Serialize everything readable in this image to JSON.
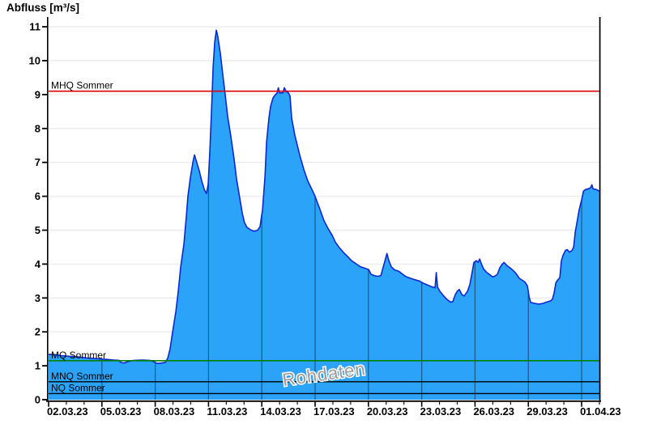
{
  "title": "Abfluss [m³/s]",
  "watermark": "Rohdaten",
  "chart_data": {
    "type": "area",
    "title": "Abfluss [m³/s]",
    "ylabel": "Abfluss [m³/s]",
    "xlabel": "",
    "grid": true,
    "ylim": [
      0,
      11.3
    ],
    "x_range_days": [
      0,
      31
    ],
    "y_ticks": [
      0,
      1,
      2,
      3,
      4,
      5,
      6,
      7,
      8,
      9,
      10,
      11
    ],
    "x_ticks": [
      {
        "label": "02.03.23",
        "day": 0
      },
      {
        "label": "05.03.23",
        "day": 3
      },
      {
        "label": "08.03.23",
        "day": 6
      },
      {
        "label": "11.03.23",
        "day": 9
      },
      {
        "label": "14.03.23",
        "day": 12
      },
      {
        "label": "17.03.23",
        "day": 15
      },
      {
        "label": "20.03.23",
        "day": 18
      },
      {
        "label": "23.03.23",
        "day": 21
      },
      {
        "label": "26.03.23",
        "day": 24
      },
      {
        "label": "29.03.23",
        "day": 27
      },
      {
        "label": "01.04.23",
        "day": 30
      }
    ],
    "reference_lines": [
      {
        "label": "MHQ Sommer",
        "value": 9.1,
        "color": "#e00000",
        "width": 1.7
      },
      {
        "label": "MQ Sommer",
        "value": 1.15,
        "color": "#008000",
        "width": 1.6
      },
      {
        "label": "MNQ Sommer",
        "value": 0.53,
        "color": "#000000",
        "width": 1.4
      },
      {
        "label": "NQ Sommer",
        "value": 0.18,
        "color": "#000000",
        "width": 1.4
      }
    ],
    "series": [
      {
        "name": "Abfluss Rohdaten",
        "unit": "m³/s",
        "points": [
          [
            0.0,
            1.34
          ],
          [
            0.32,
            1.33
          ],
          [
            0.68,
            1.3
          ],
          [
            1.19,
            1.28
          ],
          [
            1.69,
            1.26
          ],
          [
            2.19,
            1.23
          ],
          [
            2.69,
            1.21
          ],
          [
            3.19,
            1.19
          ],
          [
            3.69,
            1.17
          ],
          [
            3.97,
            1.16
          ],
          [
            4.06,
            1.1
          ],
          [
            4.24,
            1.08
          ],
          [
            4.47,
            1.13
          ],
          [
            4.79,
            1.16
          ],
          [
            5.29,
            1.17
          ],
          [
            5.7,
            1.16
          ],
          [
            5.93,
            1.12
          ],
          [
            6.11,
            1.07
          ],
          [
            6.34,
            1.08
          ],
          [
            6.57,
            1.1
          ],
          [
            6.7,
            1.22
          ],
          [
            6.84,
            1.5
          ],
          [
            6.98,
            2.0
          ],
          [
            7.16,
            2.6
          ],
          [
            7.3,
            3.2
          ],
          [
            7.43,
            3.9
          ],
          [
            7.62,
            4.6
          ],
          [
            7.75,
            5.4
          ],
          [
            7.84,
            6.0
          ],
          [
            7.98,
            6.55
          ],
          [
            8.12,
            7.0
          ],
          [
            8.21,
            7.22
          ],
          [
            8.34,
            7.0
          ],
          [
            8.48,
            6.75
          ],
          [
            8.62,
            6.45
          ],
          [
            8.76,
            6.2
          ],
          [
            8.89,
            6.08
          ],
          [
            8.98,
            6.35
          ],
          [
            9.07,
            7.3
          ],
          [
            9.17,
            8.5
          ],
          [
            9.26,
            9.8
          ],
          [
            9.35,
            10.55
          ],
          [
            9.44,
            10.9
          ],
          [
            9.53,
            10.7
          ],
          [
            9.67,
            10.2
          ],
          [
            9.8,
            9.6
          ],
          [
            9.94,
            9.0
          ],
          [
            10.08,
            8.35
          ],
          [
            10.26,
            7.75
          ],
          [
            10.44,
            7.1
          ],
          [
            10.58,
            6.5
          ],
          [
            10.76,
            5.95
          ],
          [
            10.9,
            5.5
          ],
          [
            11.03,
            5.22
          ],
          [
            11.17,
            5.08
          ],
          [
            11.4,
            5.0
          ],
          [
            11.58,
            4.97
          ],
          [
            11.76,
            5.0
          ],
          [
            11.9,
            5.1
          ],
          [
            12.04,
            5.6
          ],
          [
            12.18,
            6.6
          ],
          [
            12.27,
            7.6
          ],
          [
            12.4,
            8.3
          ],
          [
            12.49,
            8.65
          ],
          [
            12.63,
            8.9
          ],
          [
            12.77,
            9.0
          ],
          [
            12.86,
            9.05
          ],
          [
            12.93,
            9.2
          ],
          [
            13.0,
            9.05
          ],
          [
            13.18,
            9.05
          ],
          [
            13.27,
            9.2
          ],
          [
            13.36,
            9.1
          ],
          [
            13.5,
            9.05
          ],
          [
            13.59,
            8.95
          ],
          [
            13.68,
            8.3
          ],
          [
            13.86,
            7.8
          ],
          [
            14.14,
            7.2
          ],
          [
            14.36,
            6.8
          ],
          [
            14.59,
            6.45
          ],
          [
            14.82,
            6.2
          ],
          [
            15.0,
            6.0
          ],
          [
            15.28,
            5.6
          ],
          [
            15.5,
            5.28
          ],
          [
            15.73,
            5.05
          ],
          [
            15.96,
            4.85
          ],
          [
            16.14,
            4.65
          ],
          [
            16.37,
            4.48
          ],
          [
            16.64,
            4.32
          ],
          [
            16.87,
            4.2
          ],
          [
            17.05,
            4.1
          ],
          [
            17.33,
            4.0
          ],
          [
            17.56,
            3.92
          ],
          [
            17.78,
            3.88
          ],
          [
            18.01,
            3.84
          ],
          [
            18.15,
            3.7
          ],
          [
            18.33,
            3.66
          ],
          [
            18.51,
            3.64
          ],
          [
            18.7,
            3.66
          ],
          [
            18.88,
            4.0
          ],
          [
            19.04,
            4.31
          ],
          [
            19.15,
            4.1
          ],
          [
            19.29,
            3.92
          ],
          [
            19.47,
            3.83
          ],
          [
            19.7,
            3.79
          ],
          [
            19.93,
            3.7
          ],
          [
            20.11,
            3.63
          ],
          [
            20.38,
            3.58
          ],
          [
            20.61,
            3.54
          ],
          [
            20.88,
            3.5
          ],
          [
            21.11,
            3.43
          ],
          [
            21.34,
            3.38
          ],
          [
            21.57,
            3.33
          ],
          [
            21.75,
            3.3
          ],
          [
            21.82,
            3.75
          ],
          [
            21.89,
            3.32
          ],
          [
            22.02,
            3.2
          ],
          [
            22.25,
            3.05
          ],
          [
            22.44,
            2.95
          ],
          [
            22.62,
            2.88
          ],
          [
            22.75,
            2.89
          ],
          [
            22.89,
            3.1
          ],
          [
            23.03,
            3.22
          ],
          [
            23.12,
            3.25
          ],
          [
            23.26,
            3.1
          ],
          [
            23.39,
            3.06
          ],
          [
            23.58,
            3.2
          ],
          [
            23.71,
            3.4
          ],
          [
            23.85,
            3.8
          ],
          [
            23.94,
            4.05
          ],
          [
            24.08,
            4.1
          ],
          [
            24.17,
            4.05
          ],
          [
            24.26,
            4.15
          ],
          [
            24.35,
            4.02
          ],
          [
            24.49,
            3.85
          ],
          [
            24.67,
            3.75
          ],
          [
            24.85,
            3.68
          ],
          [
            24.99,
            3.62
          ],
          [
            25.13,
            3.65
          ],
          [
            25.26,
            3.7
          ],
          [
            25.4,
            3.9
          ],
          [
            25.54,
            4.0
          ],
          [
            25.63,
            4.05
          ],
          [
            25.81,
            3.95
          ],
          [
            25.99,
            3.88
          ],
          [
            26.17,
            3.8
          ],
          [
            26.31,
            3.72
          ],
          [
            26.49,
            3.58
          ],
          [
            26.67,
            3.52
          ],
          [
            26.81,
            3.47
          ],
          [
            26.95,
            3.35
          ],
          [
            27.04,
            3.05
          ],
          [
            27.13,
            2.87
          ],
          [
            27.36,
            2.84
          ],
          [
            27.59,
            2.82
          ],
          [
            27.82,
            2.84
          ],
          [
            28.04,
            2.88
          ],
          [
            28.27,
            2.92
          ],
          [
            28.36,
            2.97
          ],
          [
            28.45,
            3.15
          ],
          [
            28.55,
            3.45
          ],
          [
            28.64,
            3.52
          ],
          [
            28.77,
            3.6
          ],
          [
            28.86,
            4.1
          ],
          [
            28.95,
            4.25
          ],
          [
            29.09,
            4.4
          ],
          [
            29.18,
            4.43
          ],
          [
            29.32,
            4.35
          ],
          [
            29.46,
            4.4
          ],
          [
            29.55,
            4.5
          ],
          [
            29.64,
            4.95
          ],
          [
            29.73,
            5.2
          ],
          [
            29.86,
            5.6
          ],
          [
            30.0,
            5.9
          ],
          [
            30.1,
            6.15
          ],
          [
            30.23,
            6.2
          ],
          [
            30.37,
            6.22
          ],
          [
            30.5,
            6.25
          ],
          [
            30.58,
            6.34
          ],
          [
            30.64,
            6.22
          ],
          [
            30.82,
            6.2
          ],
          [
            31.0,
            6.15
          ]
        ]
      }
    ],
    "colors": {
      "area_fill": "#2aa3f8",
      "curve_stroke": "#0a28d0",
      "h_gridline": "#ebebeb",
      "v_gridline_over_area": "rgba(0,0,0,0.45)",
      "axis": "#000000",
      "watermark": "#9a9a9a"
    }
  }
}
